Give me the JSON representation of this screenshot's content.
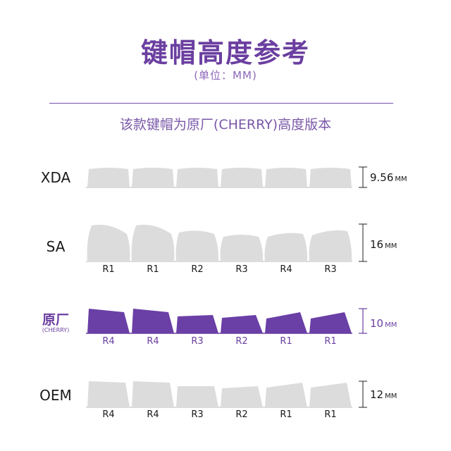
{
  "header": {
    "title": "键帽高度参考",
    "unit": "(单位：MM)",
    "subtitle": "该款键帽为原厂(CHERRY)高度版本"
  },
  "colors": {
    "accent": "#6b3fa0",
    "keycap_gray": "#dcdcdc",
    "keycap_purple": "#6a3fa6"
  },
  "unit_suffix": "MM",
  "profiles": [
    {
      "name": "XDA",
      "sub": "",
      "height": "9.56",
      "color": "gray",
      "rows": [
        "",
        "",
        "",
        "",
        "",
        ""
      ]
    },
    {
      "name": "SA",
      "sub": "",
      "height": "16",
      "color": "gray",
      "rows": [
        "R1",
        "R1",
        "R2",
        "R3",
        "R4",
        "R3"
      ]
    },
    {
      "name": "原厂",
      "sub": "(CHERRY)",
      "height": "10",
      "color": "purple",
      "rows": [
        "R4",
        "R4",
        "R3",
        "R2",
        "R1",
        "R1"
      ]
    },
    {
      "name": "OEM",
      "sub": "",
      "height": "12",
      "color": "gray",
      "rows": [
        "R4",
        "R4",
        "R3",
        "R2",
        "R1",
        "R1"
      ]
    }
  ]
}
